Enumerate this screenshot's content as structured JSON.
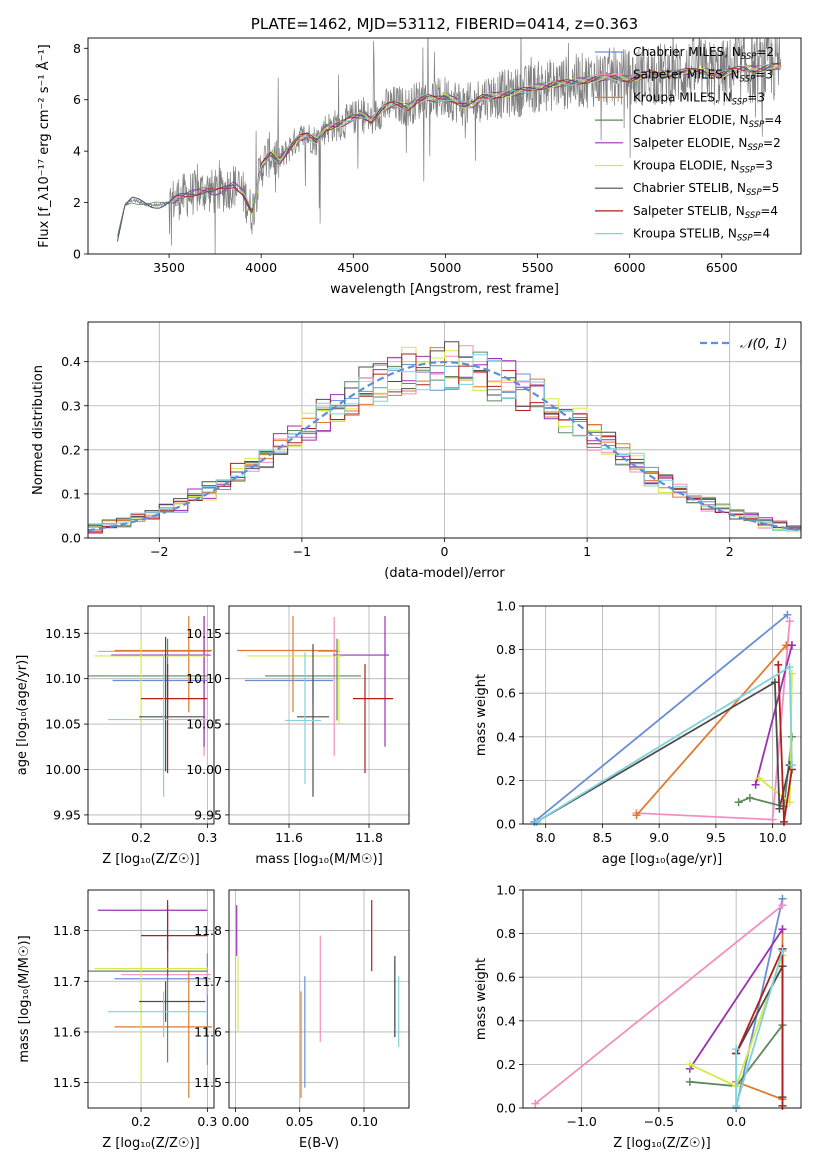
{
  "chart_data": [
    {
      "id": "spectrum",
      "type": "line",
      "title": "PLATE=1462, MJD=53112, FIBERID=0414, z=0.363",
      "xlabel": "wavelength [Angstrom, rest frame]",
      "ylabel": "Flux [f_λ10⁻¹⁷ erg cm⁻² s⁻¹ Å⁻¹]",
      "xlim": [
        3060,
        6930
      ],
      "ylim": [
        0,
        8.4
      ],
      "xticks": [
        3500,
        4000,
        4500,
        5000,
        5500,
        6000,
        6500
      ],
      "yticks": [
        0,
        2,
        4,
        6,
        8
      ],
      "legend_position": "upper-right",
      "data_envelope": {
        "x": [
          3220,
          3260,
          3300,
          3350,
          3400,
          3450,
          3500,
          3550,
          3600,
          3650,
          3700,
          3750,
          3800,
          3850,
          3900,
          3950,
          4000,
          4050,
          4100,
          4150,
          4200,
          4250,
          4300,
          4350,
          4400,
          4450,
          4500,
          4550,
          4600,
          4650,
          4700,
          4750,
          4800,
          4850,
          4900,
          4950,
          5000,
          5050,
          5100,
          5150,
          5200,
          5300,
          5400,
          5500,
          5600,
          5700,
          5800,
          5900,
          6000,
          6100,
          6200,
          6300,
          6400,
          6500,
          6600,
          6700,
          6800
        ],
        "y": [
          0.6,
          1.9,
          2.1,
          2.0,
          1.9,
          1.9,
          2.0,
          2.2,
          2.3,
          2.4,
          2.5,
          2.4,
          2.5,
          2.7,
          2.4,
          1.6,
          3.4,
          3.9,
          3.6,
          4.1,
          4.5,
          4.6,
          4.4,
          4.9,
          5.0,
          5.1,
          5.3,
          5.4,
          5.2,
          5.6,
          5.8,
          5.8,
          5.7,
          6.0,
          6.1,
          6.0,
          6.1,
          6.0,
          5.8,
          5.8,
          6.1,
          6.2,
          6.3,
          6.5,
          6.6,
          6.7,
          6.8,
          6.9,
          6.8,
          7.0,
          7.0,
          7.1,
          7.1,
          7.0,
          7.2,
          7.2,
          7.3
        ]
      },
      "series": [
        {
          "name": "Chabrier MILES, N_SSP=2",
          "color": "#6a8fd4"
        },
        {
          "name": "Salpeter MILES, N_SSP=3",
          "color": "#f28fc2"
        },
        {
          "name": "Kroupa MILES, N_SSP=3",
          "color": "#e07a2c"
        },
        {
          "name": "Chabrier ELODIE, N_SSP=4",
          "color": "#5e8a5e"
        },
        {
          "name": "Salpeter ELODIE, N_SSP=2",
          "color": "#9b30b5"
        },
        {
          "name": "Kroupa ELODIE, N_SSP=3",
          "color": "#d8e84a"
        },
        {
          "name": "Chabrier STELIB, N_SSP=5",
          "color": "#4d4d4d"
        },
        {
          "name": "Salpeter STELIB, N_SSP=4",
          "color": "#b01e1e"
        },
        {
          "name": "Kroupa STELIB, N_SSP=4",
          "color": "#7fd3db"
        }
      ]
    },
    {
      "id": "residuals",
      "type": "line",
      "xlabel": "(data-model)/error",
      "ylabel": "Normed distribution",
      "xlim": [
        -2.5,
        2.5
      ],
      "ylim": [
        0,
        0.49
      ],
      "xticks": [
        -2,
        -1,
        0,
        1,
        2
      ],
      "yticks": [
        0.0,
        0.1,
        0.2,
        0.3,
        0.4
      ],
      "grid": true,
      "legend_position": "upper-right",
      "legend": "𝒩(0, 1)",
      "gaussian": {
        "mean": 0,
        "sigma": 1,
        "color": "#5b8fd8"
      },
      "bin_width": 0.1
    },
    {
      "id": "age-vs-Z",
      "type": "scatter",
      "xlabel": "Z [log₁₀(Z/Z☉)]",
      "ylabel": "age  [log₁₀(age/yr)]",
      "xlim": [
        0.12,
        0.31
      ],
      "ylim": [
        9.94,
        10.18
      ],
      "xticks": [
        0.2,
        0.3
      ],
      "yticks": [
        9.95,
        10.0,
        10.05,
        10.1,
        10.15
      ],
      "grid": true,
      "points": [
        {
          "x": 0.24,
          "y": 10.098,
          "xerr": [
            0.083,
            0.06
          ],
          "yerr": [
            0.025,
            0.005
          ],
          "color": "#6a8fd4"
        },
        {
          "x": 0.295,
          "y": 10.13,
          "xerr": [
            0.16,
            0.01
          ],
          "yerr": [
            0.115,
            0.038
          ],
          "color": "#f28fc2"
        },
        {
          "x": 0.272,
          "y": 10.131,
          "xerr": [
            0.112,
            0.035
          ],
          "yerr": [
            0.068,
            0.038
          ],
          "color": "#e07a2c"
        },
        {
          "x": 0.24,
          "y": 10.103,
          "xerr": [
            0.125,
            0.06
          ],
          "yerr": [
            0.049,
            0.041
          ],
          "color": "#5e8a5e"
        },
        {
          "x": 0.295,
          "y": 10.126,
          "xerr": [
            0.14,
            0.01
          ],
          "yerr": [
            0.101,
            0.043
          ],
          "color": "#9b30b5"
        },
        {
          "x": 0.2,
          "y": 10.125,
          "xerr": [
            0.07,
            0.1
          ],
          "yerr": [
            0.075,
            0.018
          ],
          "color": "#d8e84a"
        },
        {
          "x": 0.237,
          "y": 10.058,
          "xerr": [
            0.04,
            0.06
          ],
          "yerr": [
            0.06,
            0.088
          ],
          "color": "#4d4d4d"
        },
        {
          "x": 0.24,
          "y": 10.078,
          "xerr": [
            0.04,
            0.06
          ],
          "yerr": [
            0.082,
            0.038
          ],
          "color": "#b01e1e"
        },
        {
          "x": 0.234,
          "y": 10.055,
          "xerr": [
            0.084,
            0.066
          ],
          "yerr": [
            0.085,
            0.072
          ],
          "color": "#7fd3db"
        }
      ]
    },
    {
      "id": "age-vs-mass",
      "type": "scatter",
      "xlabel": "mass [log₁₀(M/M☉)]",
      "ylabel": "",
      "xlim": [
        11.45,
        11.9
      ],
      "ylim": [
        9.94,
        10.18
      ],
      "xticks": [
        11.6,
        11.8
      ],
      "yticks": [
        9.95,
        10.0,
        10.05,
        10.1,
        10.15
      ],
      "grid": true,
      "points": [
        {
          "x": 11.66,
          "y": 10.098,
          "xerr": [
            0.17,
            0.05
          ],
          "yerr": [
            0.025,
            0.005
          ],
          "color": "#6a8fd4"
        },
        {
          "x": 11.713,
          "y": 10.13,
          "xerr": [
            0.04,
            0.015
          ],
          "yerr": [
            0.115,
            0.038
          ],
          "color": "#f28fc2"
        },
        {
          "x": 11.61,
          "y": 10.131,
          "xerr": [
            0.14,
            0.11
          ],
          "yerr": [
            0.068,
            0.038
          ],
          "color": "#e07a2c"
        },
        {
          "x": 11.72,
          "y": 10.103,
          "xerr": [
            0.18,
            0.06
          ],
          "yerr": [
            0.049,
            0.041
          ],
          "color": "#5e8a5e"
        },
        {
          "x": 11.84,
          "y": 10.126,
          "xerr": [
            0.13,
            0.01
          ],
          "yerr": [
            0.101,
            0.043
          ],
          "color": "#9b30b5"
        },
        {
          "x": 11.725,
          "y": 10.125,
          "xerr": [
            0.23,
            0.01
          ],
          "yerr": [
            0.075,
            0.018
          ],
          "color": "#d8e84a"
        },
        {
          "x": 11.66,
          "y": 10.058,
          "xerr": [
            0.04,
            0.04
          ],
          "yerr": [
            0.088,
            0.08
          ],
          "color": "#4d4d4d"
        },
        {
          "x": 11.79,
          "y": 10.078,
          "xerr": [
            0.03,
            0.07
          ],
          "yerr": [
            0.082,
            0.038
          ],
          "color": "#b01e1e"
        },
        {
          "x": 11.64,
          "y": 10.054,
          "xerr": [
            0.05,
            0.04
          ],
          "yerr": [
            0.07,
            0.075
          ],
          "color": "#7fd3db"
        }
      ]
    },
    {
      "id": "mass-weight-vs-age",
      "type": "line",
      "xlabel": "age  [log₁₀(age/yr)]",
      "ylabel": "mass weight",
      "xlim": [
        7.8,
        10.25
      ],
      "ylim": [
        0,
        1.0
      ],
      "xticks": [
        8.0,
        8.5,
        9.0,
        9.5,
        10.0
      ],
      "yticks": [
        0.0,
        0.2,
        0.4,
        0.6,
        0.8,
        1.0
      ],
      "grid": true,
      "series": [
        {
          "color": "#6a8fd4",
          "x": [
            7.9,
            10.13
          ],
          "y": [
            0.01,
            0.96
          ]
        },
        {
          "color": "#f28fc2",
          "x": [
            8.8,
            10.0,
            10.15
          ],
          "y": [
            0.05,
            0.02,
            0.93
          ]
        },
        {
          "color": "#e07a2c",
          "x": [
            8.8,
            10.12,
            10.17
          ],
          "y": [
            0.04,
            0.82,
            0.82
          ]
        },
        {
          "color": "#5e8a5e",
          "x": [
            9.7,
            9.8,
            10.1,
            10.17
          ],
          "y": [
            0.1,
            0.12,
            0.08,
            0.4
          ]
        },
        {
          "color": "#9b30b5",
          "x": [
            9.85,
            10.17
          ],
          "y": [
            0.18,
            0.82
          ]
        },
        {
          "color": "#d8e84a",
          "x": [
            9.88,
            10.15,
            10.17
          ],
          "y": [
            0.21,
            0.1,
            0.69
          ]
        },
        {
          "color": "#4d4d4d",
          "x": [
            7.92,
            10.02,
            10.06,
            10.15
          ],
          "y": [
            0.01,
            0.65,
            0.07,
            0.27
          ]
        },
        {
          "color": "#b01e1e",
          "x": [
            10.05,
            10.1,
            10.17
          ],
          "y": [
            0.73,
            0.01,
            0.25
          ]
        },
        {
          "color": "#7fd3db",
          "x": [
            7.92,
            10.15,
            10.17
          ],
          "y": [
            0.01,
            0.72,
            0.27
          ]
        }
      ]
    },
    {
      "id": "mass-vs-Z",
      "type": "scatter",
      "xlabel": "Z [log₁₀(Z/Z☉)]",
      "ylabel": "mass [log₁₀(M/M☉)]",
      "xlim": [
        0.12,
        0.31
      ],
      "ylim": [
        11.45,
        11.88
      ],
      "xticks": [
        0.2,
        0.3
      ],
      "yticks": [
        11.5,
        11.6,
        11.7,
        11.8
      ],
      "grid": true,
      "points": [
        {
          "x": 0.3,
          "y": 11.705,
          "xerr": [
            0.14,
            0.005
          ],
          "yerr": [
            0.17,
            0.05
          ],
          "color": "#6a8fd4"
        },
        {
          "x": 0.3,
          "y": 11.713,
          "xerr": [
            0.13,
            0.005
          ],
          "yerr": [
            0.04,
            0.015
          ],
          "color": "#f28fc2"
        },
        {
          "x": 0.272,
          "y": 11.61,
          "xerr": [
            0.112,
            0.035
          ],
          "yerr": [
            0.14,
            0.11
          ],
          "color": "#e07a2c"
        },
        {
          "x": 0.24,
          "y": 11.72,
          "xerr": [
            0.125,
            0.06
          ],
          "yerr": [
            0.18,
            0.06
          ],
          "color": "#5e8a5e"
        },
        {
          "x": 0.24,
          "y": 11.84,
          "xerr": [
            0.105,
            0.06
          ],
          "yerr": [
            0.13,
            0.01
          ],
          "color": "#9b30b5"
        },
        {
          "x": 0.2,
          "y": 11.725,
          "xerr": [
            0.07,
            0.1
          ],
          "yerr": [
            0.23,
            0.01
          ],
          "color": "#d8e84a"
        },
        {
          "x": 0.237,
          "y": 11.66,
          "xerr": [
            0.04,
            0.06
          ],
          "yerr": [
            0.04,
            0.04
          ],
          "color": "#4d4d4d"
        },
        {
          "x": 0.24,
          "y": 11.79,
          "xerr": [
            0.04,
            0.06
          ],
          "yerr": [
            0.03,
            0.07
          ],
          "color": "#b01e1e"
        },
        {
          "x": 0.234,
          "y": 11.64,
          "xerr": [
            0.084,
            0.066
          ],
          "yerr": [
            0.05,
            0.04
          ],
          "color": "#7fd3db"
        }
      ]
    },
    {
      "id": "mass-vs-EBV",
      "type": "scatter",
      "xlabel": "E(B-V)",
      "ylabel": "",
      "xlim": [
        -0.005,
        0.135
      ],
      "ylim": [
        11.45,
        11.88
      ],
      "xticks": [
        0.0,
        0.05,
        0.1
      ],
      "yticks": [
        11.5,
        11.6,
        11.7,
        11.8
      ],
      "grid": true,
      "points": [
        {
          "x": 0.054,
          "y": 11.59,
          "xerr": [
            0,
            0
          ],
          "yerr": [
            0.1,
            0.12
          ],
          "color": "#6a8fd4"
        },
        {
          "x": 0.066,
          "y": 11.68,
          "xerr": [
            0,
            0
          ],
          "yerr": [
            0.1,
            0.11
          ],
          "color": "#f28fc2"
        },
        {
          "x": 0.051,
          "y": 11.58,
          "xerr": [
            0,
            0
          ],
          "yerr": [
            0.11,
            0.1
          ],
          "color": "#e07a2c"
        },
        {
          "x": 0.124,
          "y": 11.67,
          "xerr": [
            0,
            0
          ],
          "yerr": [
            0.08,
            0.07
          ],
          "color": "#5e8a5e"
        },
        {
          "x": 0.001,
          "y": 11.79,
          "xerr": [
            0,
            0
          ],
          "yerr": [
            0.04,
            0.06
          ],
          "color": "#9b30b5"
        },
        {
          "x": 0.002,
          "y": 11.68,
          "xerr": [
            0,
            0
          ],
          "yerr": [
            0.08,
            0.07
          ],
          "color": "#d8e84a"
        },
        {
          "x": 0.124,
          "y": 11.67,
          "xerr": [
            0,
            0
          ],
          "yerr": [
            0.08,
            0.08
          ],
          "color": "#4d4d4d"
        },
        {
          "x": 0.106,
          "y": 11.79,
          "xerr": [
            0,
            0
          ],
          "yerr": [
            0.07,
            0.07
          ],
          "color": "#b01e1e"
        },
        {
          "x": 0.127,
          "y": 11.64,
          "xerr": [
            0,
            0
          ],
          "yerr": [
            0.07,
            0.07
          ],
          "color": "#7fd3db"
        }
      ]
    },
    {
      "id": "mass-weight-vs-Z",
      "type": "line",
      "xlabel": "Z [log₁₀(Z/Z☉)]",
      "ylabel": "mass weight",
      "xlim": [
        -1.38,
        0.42
      ],
      "ylim": [
        0,
        1.0
      ],
      "xticks": [
        -1.0,
        -0.5,
        0.0
      ],
      "yticks": [
        0.0,
        0.2,
        0.4,
        0.6,
        0.8,
        1.0
      ],
      "grid": true,
      "series": [
        {
          "color": "#6a8fd4",
          "x": [
            0.0,
            0.3
          ],
          "y": [
            0.0,
            0.96
          ]
        },
        {
          "color": "#f28fc2",
          "x": [
            -1.3,
            0.3
          ],
          "y": [
            0.02,
            0.93
          ]
        },
        {
          "color": "#e07a2c",
          "x": [
            0.0,
            0.3,
            0.3
          ],
          "y": [
            0.12,
            0.04,
            0.82
          ]
        },
        {
          "color": "#5e8a5e",
          "x": [
            -0.3,
            0.0,
            0.3
          ],
          "y": [
            0.12,
            0.1,
            0.38
          ]
        },
        {
          "color": "#9b30b5",
          "x": [
            -0.3,
            0.3
          ],
          "y": [
            0.18,
            0.82
          ]
        },
        {
          "color": "#d8e84a",
          "x": [
            -0.3,
            0.0,
            0.3
          ],
          "y": [
            0.2,
            0.1,
            0.7
          ]
        },
        {
          "color": "#4d4d4d",
          "x": [
            0.0,
            0.3,
            0.3
          ],
          "y": [
            0.25,
            0.65,
            0.05
          ]
        },
        {
          "color": "#b01e1e",
          "x": [
            0.0,
            0.3,
            0.3
          ],
          "y": [
            0.25,
            0.73,
            0.01
          ]
        },
        {
          "color": "#7fd3db",
          "x": [
            0.0,
            0.0,
            0.3
          ],
          "y": [
            0.27,
            0.01,
            0.72
          ]
        }
      ]
    }
  ]
}
